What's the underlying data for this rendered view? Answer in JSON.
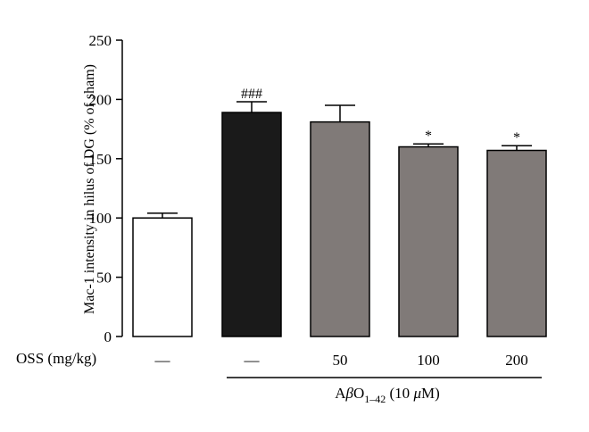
{
  "chart_data": {
    "type": "bar",
    "title": "",
    "ylabel": "Mac-1 intensity in hilus of DG (% of sham)",
    "xlabel": "",
    "ylim": [
      0,
      250
    ],
    "yticks": [
      0,
      50,
      100,
      150,
      200,
      250
    ],
    "row_label": "OSS (mg/kg)",
    "categories": [
      "—",
      "—",
      "50",
      "100",
      "200"
    ],
    "values": [
      100,
      189,
      181,
      160,
      157
    ],
    "errors": [
      4,
      9,
      14,
      2.5,
      4
    ],
    "annotations": [
      "",
      "###",
      "",
      "*",
      "*"
    ],
    "bar_colors": [
      "#ffffff",
      "#1a1a1a",
      "#807a78",
      "#807a78",
      "#807a78"
    ],
    "group_label": {
      "prefix": "A",
      "beta": "β",
      "O": "O",
      "subscript": "1–42",
      "suffix": " (10 ",
      "mu": "μ",
      "unit": "M)"
    }
  }
}
